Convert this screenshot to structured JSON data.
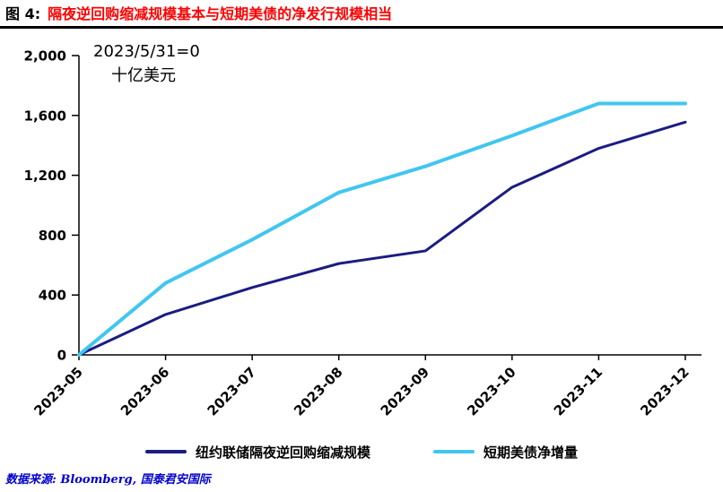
{
  "header": {
    "figure_label": "图 4:",
    "title": "隔夜逆回购缩减规模基本与短期美债的净发行规模相当"
  },
  "chart_data": {
    "type": "line",
    "title": "隔夜逆回购缩减规模基本与短期美债的净发行规模相当",
    "annotation": {
      "line1": "2023/5/31=0",
      "line2": "十亿美元"
    },
    "x": [
      "2023-05",
      "2023-06",
      "2023-07",
      "2023-08",
      "2023-09",
      "2023-10",
      "2023-11",
      "2023-12"
    ],
    "series": [
      {
        "name": "纽约联储隔夜逆回购缩减规模",
        "color": "#1c1c82",
        "width": 3,
        "values": [
          0,
          270,
          450,
          610,
          695,
          1120,
          1380,
          1555
        ]
      },
      {
        "name": "短期美债净增量",
        "color": "#41c6f0",
        "width": 4,
        "values": [
          0,
          480,
          770,
          1085,
          1260,
          1465,
          1680,
          1680
        ]
      }
    ],
    "ylim": [
      0,
      2000
    ],
    "yticks": [
      0,
      400,
      800,
      1200,
      1600,
      2000
    ],
    "ytick_labels": [
      "0",
      "400",
      "800",
      "1,200",
      "1,600",
      "2,000"
    ],
    "xlabel": "",
    "ylabel": "",
    "grid": false,
    "legend_position": "bottom"
  },
  "footer": {
    "source": "数据来源: Bloomberg, 国泰君安国际"
  }
}
